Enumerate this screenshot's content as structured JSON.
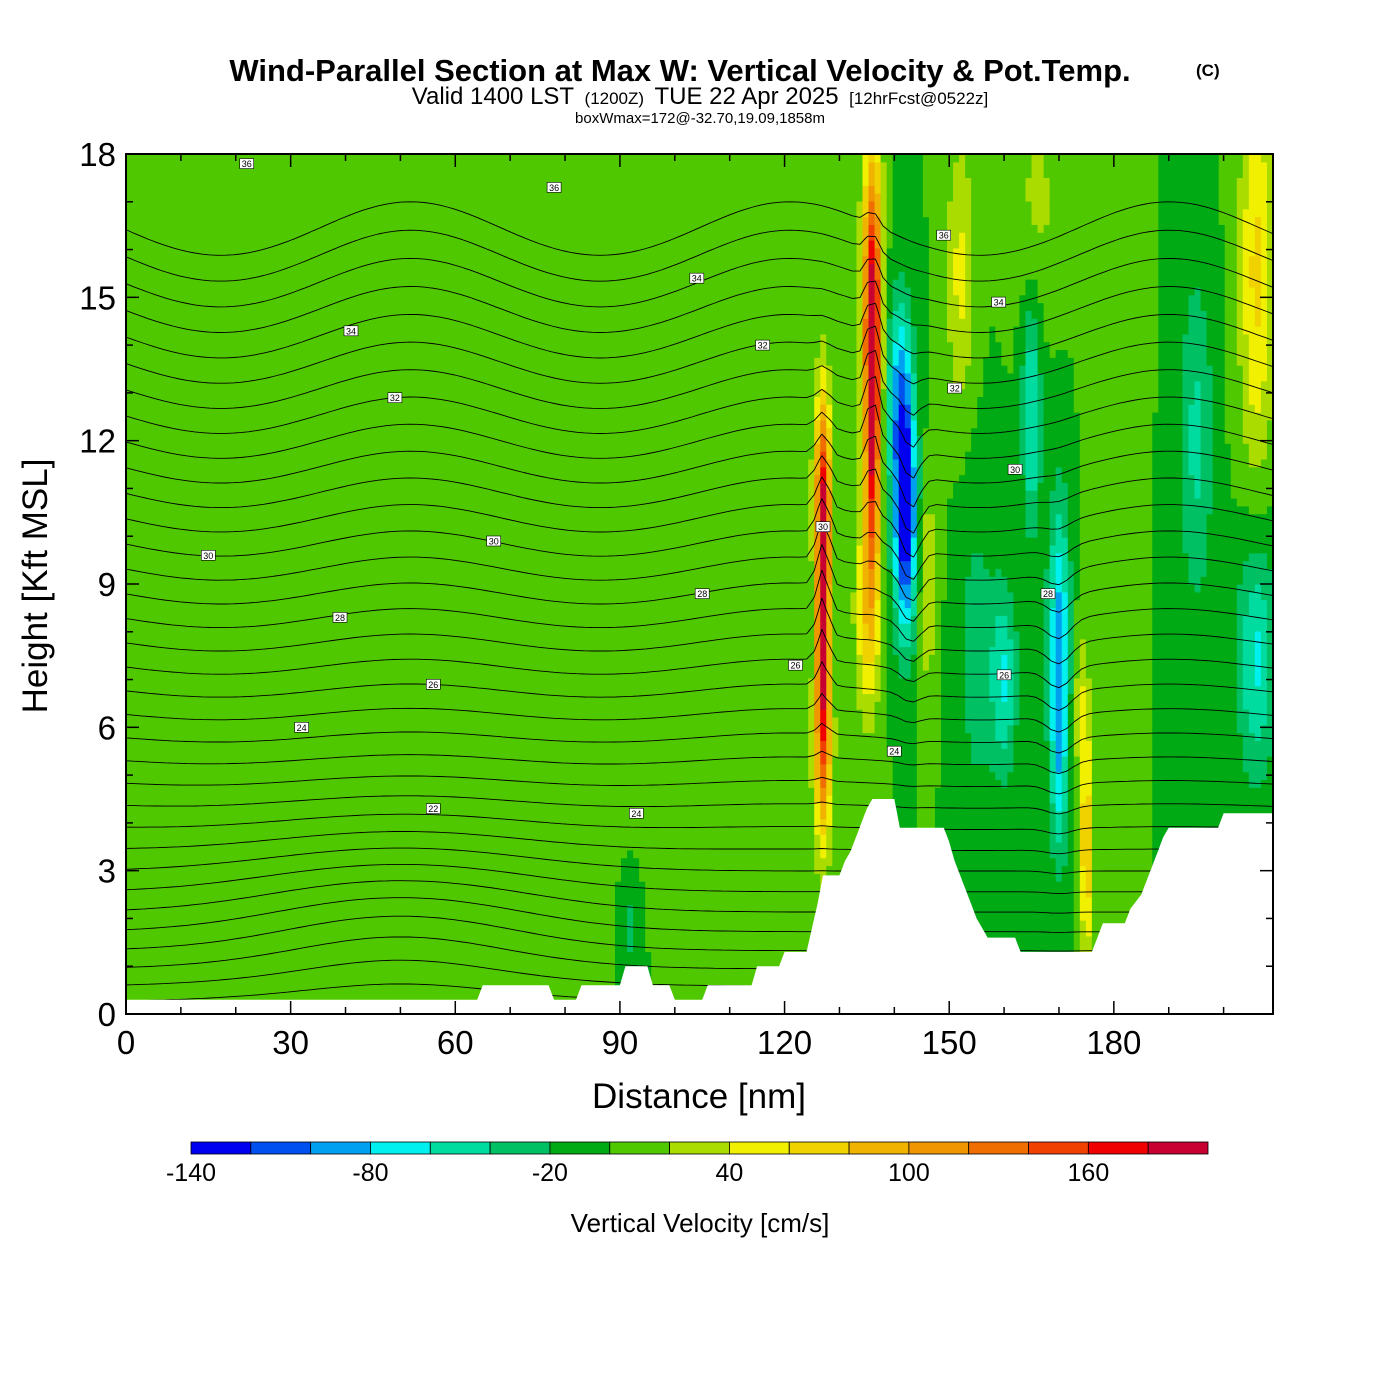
{
  "chart_data": {
    "type": "heatmap",
    "title": "Wind-Parallel Section at Max W: Vertical Velocity & Pot.Temp.",
    "title_mark": "(C)",
    "subtitle": {
      "valid": "Valid 1400 LST",
      "utc": "(1200Z)",
      "date": "TUE 22 Apr 2025",
      "forecast": "[12hrFcst@0522z]",
      "box": "boxWmax=172@-32.70,19.09,1858m"
    },
    "xlabel": "Distance [nm]",
    "ylabel": "Height [Kft MSL]",
    "xlim": [
      0,
      209
    ],
    "ylim": [
      0,
      18
    ],
    "x_ticks": [
      0,
      30,
      60,
      90,
      120,
      150,
      180
    ],
    "y_ticks": [
      0,
      3,
      6,
      9,
      12,
      15,
      18
    ],
    "colorbar": {
      "title": "Vertical Velocity [cm/s]",
      "levels": [
        -140,
        -120,
        -100,
        -80,
        -60,
        -40,
        -20,
        0,
        20,
        40,
        60,
        80,
        100,
        120,
        140,
        160,
        180,
        200
      ],
      "labels": [
        "-140",
        "-80",
        "-20",
        "40",
        "100",
        "160"
      ],
      "label_values": [
        -140,
        -80,
        -20,
        40,
        100,
        160
      ],
      "colors": [
        "#0000f0",
        "#0050f0",
        "#00a0f0",
        "#00f0f0",
        "#00dca0",
        "#00c064",
        "#00aa14",
        "#50c800",
        "#aadc00",
        "#f0f000",
        "#f0d200",
        "#f0b400",
        "#f09600",
        "#f06e00",
        "#f04100",
        "#f00000",
        "#c80032"
      ]
    },
    "background_w": 0,
    "terrain": [
      [
        0,
        0.3
      ],
      [
        10,
        0.3
      ],
      [
        20,
        0.3
      ],
      [
        30,
        0.3
      ],
      [
        40,
        0.3
      ],
      [
        50,
        0.3
      ],
      [
        60,
        0.3
      ],
      [
        64,
        0.3
      ],
      [
        65,
        0.6
      ],
      [
        77,
        0.6
      ],
      [
        78,
        0.3
      ],
      [
        82,
        0.3
      ],
      [
        83,
        0.6
      ],
      [
        90,
        0.6
      ],
      [
        91,
        1.0
      ],
      [
        95,
        1.0
      ],
      [
        96,
        0.6
      ],
      [
        99,
        0.6
      ],
      [
        100,
        0.3
      ],
      [
        105,
        0.3
      ],
      [
        106,
        0.6
      ],
      [
        114,
        0.6
      ],
      [
        115,
        1.0
      ],
      [
        119,
        1.0
      ],
      [
        120,
        1.3
      ],
      [
        124,
        1.3
      ],
      [
        125,
        1.8
      ],
      [
        126,
        2.3
      ],
      [
        127,
        2.9
      ],
      [
        130,
        2.9
      ],
      [
        131,
        3.2
      ],
      [
        132,
        3.4
      ],
      [
        133,
        3.7
      ],
      [
        134,
        4.0
      ],
      [
        135,
        4.3
      ],
      [
        136,
        4.5
      ],
      [
        140,
        4.5
      ],
      [
        141,
        3.9
      ],
      [
        149,
        3.9
      ],
      [
        150,
        3.6
      ],
      [
        151,
        3.2
      ],
      [
        152,
        2.9
      ],
      [
        153,
        2.6
      ],
      [
        154,
        2.3
      ],
      [
        155,
        2.0
      ],
      [
        156,
        1.8
      ],
      [
        157,
        1.6
      ],
      [
        158,
        1.6
      ],
      [
        162,
        1.6
      ],
      [
        163,
        1.3
      ],
      [
        176,
        1.3
      ],
      [
        177,
        1.6
      ],
      [
        178,
        1.9
      ],
      [
        182,
        1.9
      ],
      [
        183,
        2.2
      ],
      [
        185,
        2.5
      ],
      [
        186,
        2.8
      ],
      [
        187,
        3.1
      ],
      [
        188,
        3.4
      ],
      [
        189,
        3.7
      ],
      [
        190,
        3.9
      ],
      [
        199,
        3.9
      ],
      [
        200,
        4.2
      ],
      [
        209,
        4.2
      ]
    ],
    "w_features": [
      {
        "x": 127,
        "z": 8.5,
        "sx": 0.9,
        "sz": 2.4,
        "w": 172
      },
      {
        "x": 127,
        "z": 5.5,
        "sx": 1.3,
        "sz": 1.5,
        "w": 75
      },
      {
        "x": 127,
        "z": 11.0,
        "sx": 1.2,
        "sz": 1.5,
        "w": 85
      },
      {
        "x": 136,
        "z": 12.5,
        "sx": 1.0,
        "sz": 2.4,
        "w": 170
      },
      {
        "x": 136,
        "z": 15.5,
        "sx": 1.3,
        "sz": 2.2,
        "w": 115
      },
      {
        "x": 135,
        "z": 8.5,
        "sx": 1.6,
        "sz": 1.6,
        "w": 65
      },
      {
        "x": 142,
        "z": 10.3,
        "sx": 1.5,
        "sz": 1.7,
        "w": -140
      },
      {
        "x": 141,
        "z": 13.0,
        "sx": 1.7,
        "sz": 1.5,
        "w": -80
      },
      {
        "x": 146,
        "z": 9.0,
        "sx": 1.2,
        "sz": 1.6,
        "w": 40
      },
      {
        "x": 152,
        "z": 15.5,
        "sx": 1.8,
        "sz": 2.0,
        "w": 45
      },
      {
        "x": 155,
        "z": 7.5,
        "sx": 2.5,
        "sz": 2.5,
        "w": -30
      },
      {
        "x": 160,
        "z": 7.0,
        "sx": 1.7,
        "sz": 1.4,
        "w": -60
      },
      {
        "x": 165,
        "z": 12.5,
        "sx": 1.2,
        "sz": 1.7,
        "w": -65
      },
      {
        "x": 170,
        "z": 8.0,
        "sx": 1.4,
        "sz": 2.0,
        "w": -85
      },
      {
        "x": 170,
        "z": 5.0,
        "sx": 1.2,
        "sz": 1.5,
        "w": -50
      },
      {
        "x": 175,
        "z": 3.5,
        "sx": 0.9,
        "sz": 1.7,
        "w": 80
      },
      {
        "x": 174,
        "z": 6.5,
        "sx": 1.0,
        "sz": 1.2,
        "w": 35
      },
      {
        "x": 180,
        "z": 14.0,
        "sx": 2.5,
        "sz": 3.0,
        "w": 15
      },
      {
        "x": 195,
        "z": 12.0,
        "sx": 2.2,
        "sz": 2.5,
        "w": -45
      },
      {
        "x": 206,
        "z": 15.5,
        "sx": 2.2,
        "sz": 3.0,
        "w": 65
      },
      {
        "x": 206,
        "z": 7.5,
        "sx": 2.5,
        "sz": 1.8,
        "w": -65
      },
      {
        "x": 166,
        "z": 17.0,
        "sx": 3.0,
        "sz": 1.5,
        "w": 25
      },
      {
        "x": 97,
        "z": 15.5,
        "sx": 3.0,
        "sz": 2.0,
        "w": 15
      },
      {
        "x": 63,
        "z": 10.0,
        "sx": 5.0,
        "sz": 6.0,
        "w": 12
      },
      {
        "x": 80,
        "z": 8.0,
        "sx": 4.0,
        "sz": 3.0,
        "w": 10
      },
      {
        "x": 95,
        "z": 6.0,
        "sx": 5.0,
        "sz": 2.0,
        "w": 10
      },
      {
        "x": 40,
        "z": 4.0,
        "sx": 8.0,
        "sz": 1.5,
        "w": 10
      },
      {
        "x": 72,
        "z": 4.0,
        "sx": 4.0,
        "sz": 2.0,
        "w": 10
      },
      {
        "x": 30,
        "z": 8.8,
        "sx": 2.0,
        "sz": 1.0,
        "w": 10
      },
      {
        "x": 18,
        "z": 7.0,
        "sx": 2.5,
        "sz": 1.0,
        "w": 10
      },
      {
        "x": 92,
        "z": 1.8,
        "sx": 1.2,
        "sz": 0.8,
        "w": -25
      },
      {
        "x": 82,
        "z": 14.5,
        "sx": 2.0,
        "sz": 1.5,
        "w": 10
      }
    ],
    "theta_levels": [
      20,
      20.5,
      21,
      21.5,
      22,
      22.5,
      23,
      23.5,
      24,
      24.5,
      25,
      25.5,
      26,
      26.5,
      27,
      27.5,
      28,
      28.5,
      29,
      29.5,
      30,
      30.5,
      31,
      31.5,
      32,
      32.5,
      33,
      33.5,
      34,
      34.5,
      35,
      35.5,
      36,
      36.5,
      37
    ],
    "theta_labels": [
      {
        "x": 22,
        "z": 17.8,
        "text": "36"
      },
      {
        "x": 78,
        "z": 17.3,
        "text": "36"
      },
      {
        "x": 149,
        "z": 16.3,
        "text": "36"
      },
      {
        "x": 41,
        "z": 14.3,
        "text": "34"
      },
      {
        "x": 104,
        "z": 15.4,
        "text": "34"
      },
      {
        "x": 159,
        "z": 14.9,
        "text": "34"
      },
      {
        "x": 49,
        "z": 12.9,
        "text": "32"
      },
      {
        "x": 116,
        "z": 14.0,
        "text": "32"
      },
      {
        "x": 151,
        "z": 13.1,
        "text": "32"
      },
      {
        "x": 15,
        "z": 9.6,
        "text": "30"
      },
      {
        "x": 67,
        "z": 9.9,
        "text": "30"
      },
      {
        "x": 127,
        "z": 10.2,
        "text": "30"
      },
      {
        "x": 162,
        "z": 11.4,
        "text": "30"
      },
      {
        "x": 39,
        "z": 8.3,
        "text": "28"
      },
      {
        "x": 105,
        "z": 8.8,
        "text": "28"
      },
      {
        "x": 168,
        "z": 8.8,
        "text": "28"
      },
      {
        "x": 56,
        "z": 6.9,
        "text": "26"
      },
      {
        "x": 122,
        "z": 7.3,
        "text": "26"
      },
      {
        "x": 160,
        "z": 7.1,
        "text": "26"
      },
      {
        "x": 32,
        "z": 6.0,
        "text": "24"
      },
      {
        "x": 93,
        "z": 4.2,
        "text": "24"
      },
      {
        "x": 140,
        "z": 5.5,
        "text": "24"
      },
      {
        "x": 56,
        "z": 4.3,
        "text": "22"
      }
    ]
  }
}
